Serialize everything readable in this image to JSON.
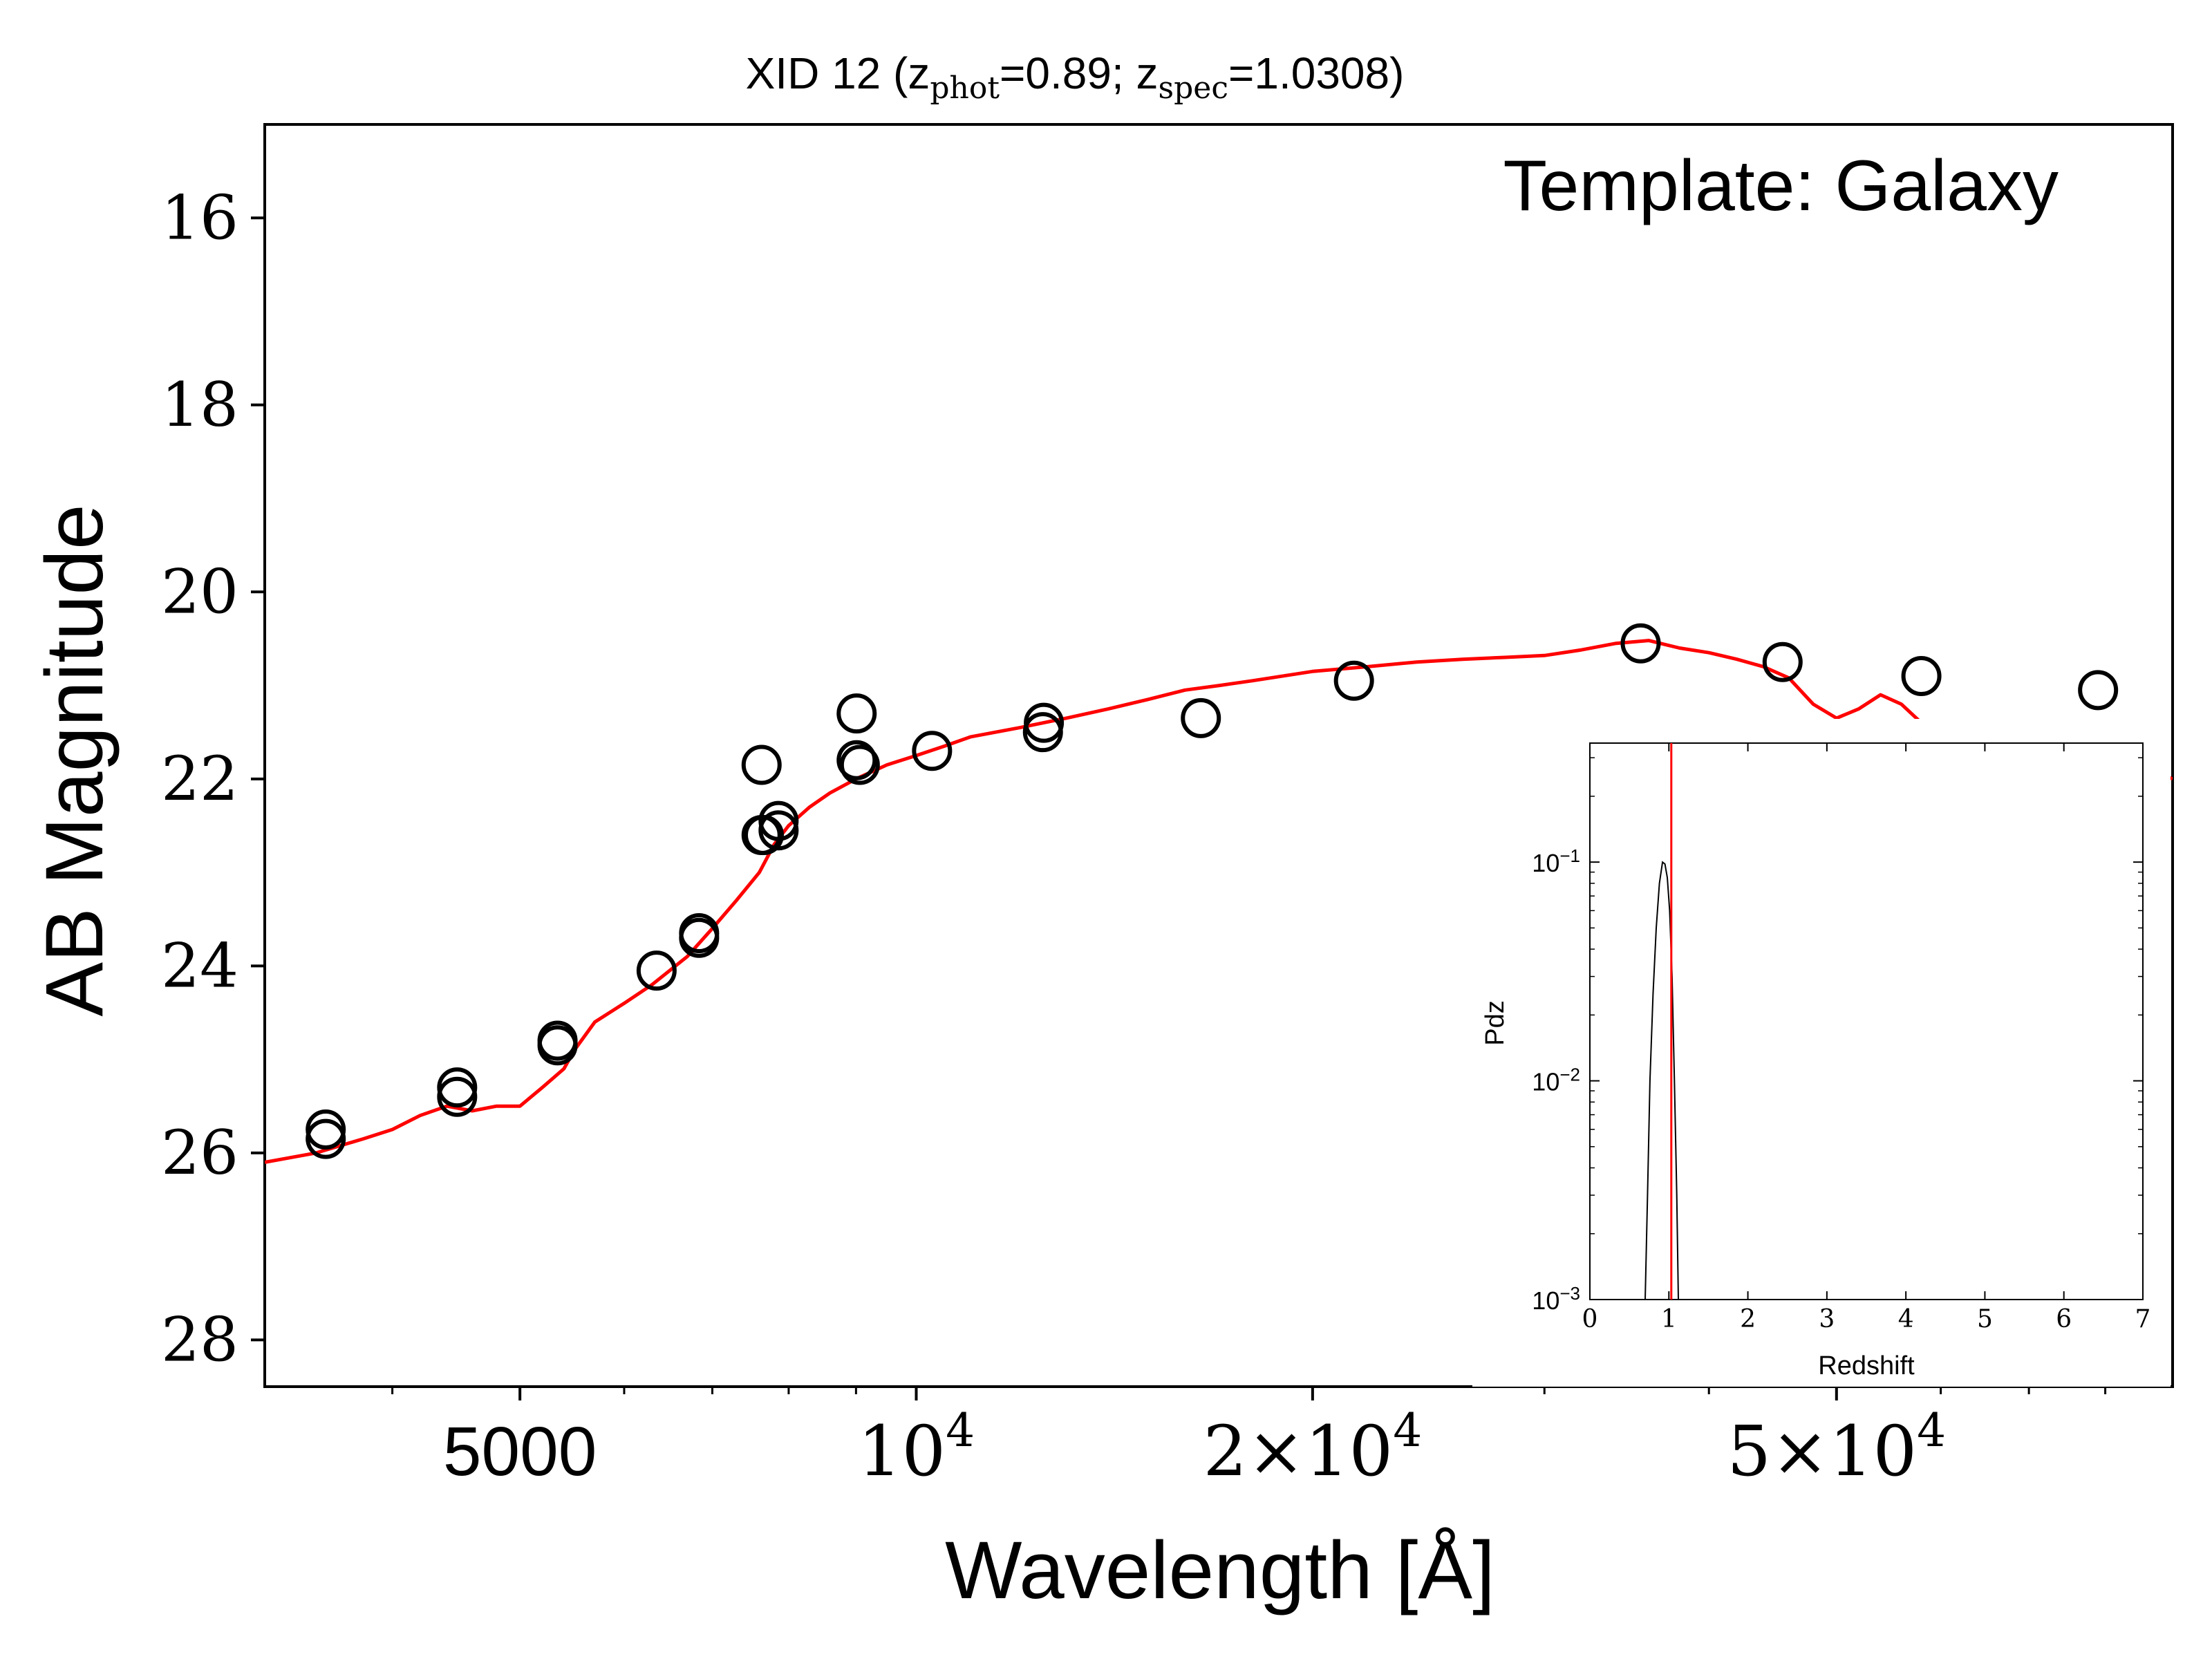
{
  "chart_data": [
    {
      "type": "scatter",
      "title": {
        "prefix": "XID 12 (z",
        "sub1": "phot",
        "mid": "=0.89; z",
        "sub2": "spec",
        "suffix": "=1.0308)"
      },
      "annotation": "Template: Galaxy",
      "xlabel": "Wavelength [Å]",
      "ylabel": "AB Magnitude",
      "x_scale": "log",
      "xlim": [
        3200,
        90000
      ],
      "ylim": [
        28.5,
        15
      ],
      "y_inverted": true,
      "x_ticks": [
        {
          "value": 5000,
          "base": "5000",
          "exp": ""
        },
        {
          "value": 10000,
          "base": "10",
          "exp": "4"
        },
        {
          "value": 20000,
          "base": "2×10",
          "exp": "4"
        },
        {
          "value": 50000,
          "base": "5×10",
          "exp": "4"
        }
      ],
      "y_ticks": [
        16,
        18,
        20,
        22,
        24,
        26,
        28
      ],
      "grid": false,
      "series": [
        {
          "kind": "line",
          "color": "#ff0000",
          "x": [
            3200,
            3500,
            3800,
            4000,
            4200,
            4400,
            4600,
            4800,
            5000,
            5200,
            5400,
            5500,
            5700,
            6000,
            6300,
            6700,
            7000,
            7300,
            7600,
            7800,
            8000,
            8300,
            8600,
            9000,
            9500,
            10000,
            10500,
            11000,
            12000,
            13000,
            14000,
            15000,
            16000,
            17000,
            18000,
            20000,
            22000,
            24000,
            26000,
            28000,
            30000,
            32000,
            34000,
            36000,
            38000,
            40000,
            42000,
            44000,
            46000,
            48000,
            50000,
            52000,
            54000,
            56000,
            58000,
            60000,
            62000,
            64000,
            66000,
            68000,
            70000,
            72000,
            75000,
            80000,
            85000,
            90000
          ],
          "y": [
            26.1,
            26.0,
            25.85,
            25.75,
            25.6,
            25.5,
            25.55,
            25.5,
            25.5,
            25.3,
            25.1,
            24.9,
            24.6,
            24.4,
            24.2,
            23.9,
            23.6,
            23.3,
            23.0,
            22.7,
            22.5,
            22.3,
            22.15,
            22.0,
            21.85,
            21.75,
            21.65,
            21.55,
            21.45,
            21.35,
            21.25,
            21.15,
            21.05,
            21.0,
            20.95,
            20.85,
            20.8,
            20.75,
            20.72,
            20.7,
            20.68,
            20.62,
            20.55,
            20.52,
            20.6,
            20.65,
            20.72,
            20.8,
            20.92,
            21.2,
            21.35,
            21.25,
            21.1,
            21.2,
            21.4,
            21.45,
            21.48,
            21.5,
            21.45,
            21.5,
            21.5,
            21.55,
            21.6,
            21.7,
            21.85,
            22.0
          ]
        },
        {
          "kind": "scatter",
          "marker": "open-circle",
          "color": "#000000",
          "x": [
            3560,
            3560,
            4480,
            4480,
            5340,
            5340,
            6350,
            6840,
            6840,
            7630,
            7630,
            7660,
            7860,
            7860,
            9010,
            9010,
            9060,
            10280,
            12500,
            12480,
            16450,
            21500,
            35500,
            45500,
            58000,
            79000
          ],
          "y": [
            25.75,
            25.85,
            25.3,
            25.4,
            24.85,
            24.8,
            24.05,
            23.7,
            23.65,
            22.6,
            21.85,
            22.6,
            22.45,
            22.55,
            21.3,
            21.8,
            21.85,
            21.7,
            21.4,
            21.5,
            21.35,
            20.95,
            20.55,
            20.75,
            20.9,
            21.05
          ]
        }
      ]
    },
    {
      "type": "line",
      "xlabel": "Redshift",
      "ylabel": "Pdz",
      "y_scale": "log",
      "xlim": [
        0,
        7
      ],
      "ylim": [
        0.001,
        0.35
      ],
      "x_ticks": [
        "0",
        "1",
        "2",
        "3",
        "4",
        "5",
        "6",
        "7"
      ],
      "y_ticks": [
        {
          "value": 0.1,
          "base": "10",
          "exp": "−1"
        },
        {
          "value": 0.01,
          "base": "10",
          "exp": "−2"
        },
        {
          "value": 0.001,
          "base": "10",
          "exp": "−3"
        }
      ],
      "grid": false,
      "series": [
        {
          "kind": "line",
          "color": "#000000",
          "x": [
            0.7,
            0.73,
            0.76,
            0.8,
            0.84,
            0.88,
            0.92,
            0.95,
            0.98,
            1.01,
            1.04,
            1.07,
            1.1,
            1.12
          ],
          "y": [
            0.001,
            0.003,
            0.01,
            0.025,
            0.05,
            0.08,
            0.1,
            0.098,
            0.085,
            0.06,
            0.03,
            0.01,
            0.003,
            0.001
          ]
        }
      ],
      "vline": {
        "x": 1.0308,
        "color": "#ff0000"
      }
    }
  ]
}
